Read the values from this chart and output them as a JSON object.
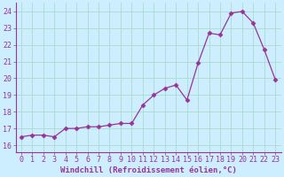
{
  "x": [
    0,
    1,
    2,
    3,
    4,
    5,
    6,
    7,
    8,
    9,
    10,
    11,
    12,
    13,
    14,
    15,
    16,
    17,
    18,
    19,
    20,
    21,
    22,
    23
  ],
  "y": [
    16.5,
    16.6,
    16.6,
    16.5,
    17.0,
    17.0,
    17.1,
    17.1,
    17.2,
    17.3,
    17.3,
    18.4,
    19.0,
    19.4,
    19.6,
    18.7,
    20.9,
    22.7,
    22.6,
    23.9,
    24.0,
    23.3,
    21.7,
    19.9
  ],
  "line_color": "#993399",
  "marker": "D",
  "marker_size": 2.5,
  "xlabel": "Windchill (Refroidissement éolien,°C)",
  "ylim": [
    15.6,
    24.5
  ],
  "xlim": [
    -0.5,
    23.5
  ],
  "yticks": [
    16,
    17,
    18,
    19,
    20,
    21,
    22,
    23,
    24
  ],
  "xticks": [
    0,
    1,
    2,
    3,
    4,
    5,
    6,
    7,
    8,
    9,
    10,
    11,
    12,
    13,
    14,
    15,
    16,
    17,
    18,
    19,
    20,
    21,
    22,
    23
  ],
  "bg_color": "#cceeff",
  "grid_color": "#aaddcc",
  "tick_color": "#993399",
  "label_color": "#993399",
  "xlabel_fontsize": 6.5,
  "tick_fontsize": 6.0,
  "spine_color": "#993399"
}
